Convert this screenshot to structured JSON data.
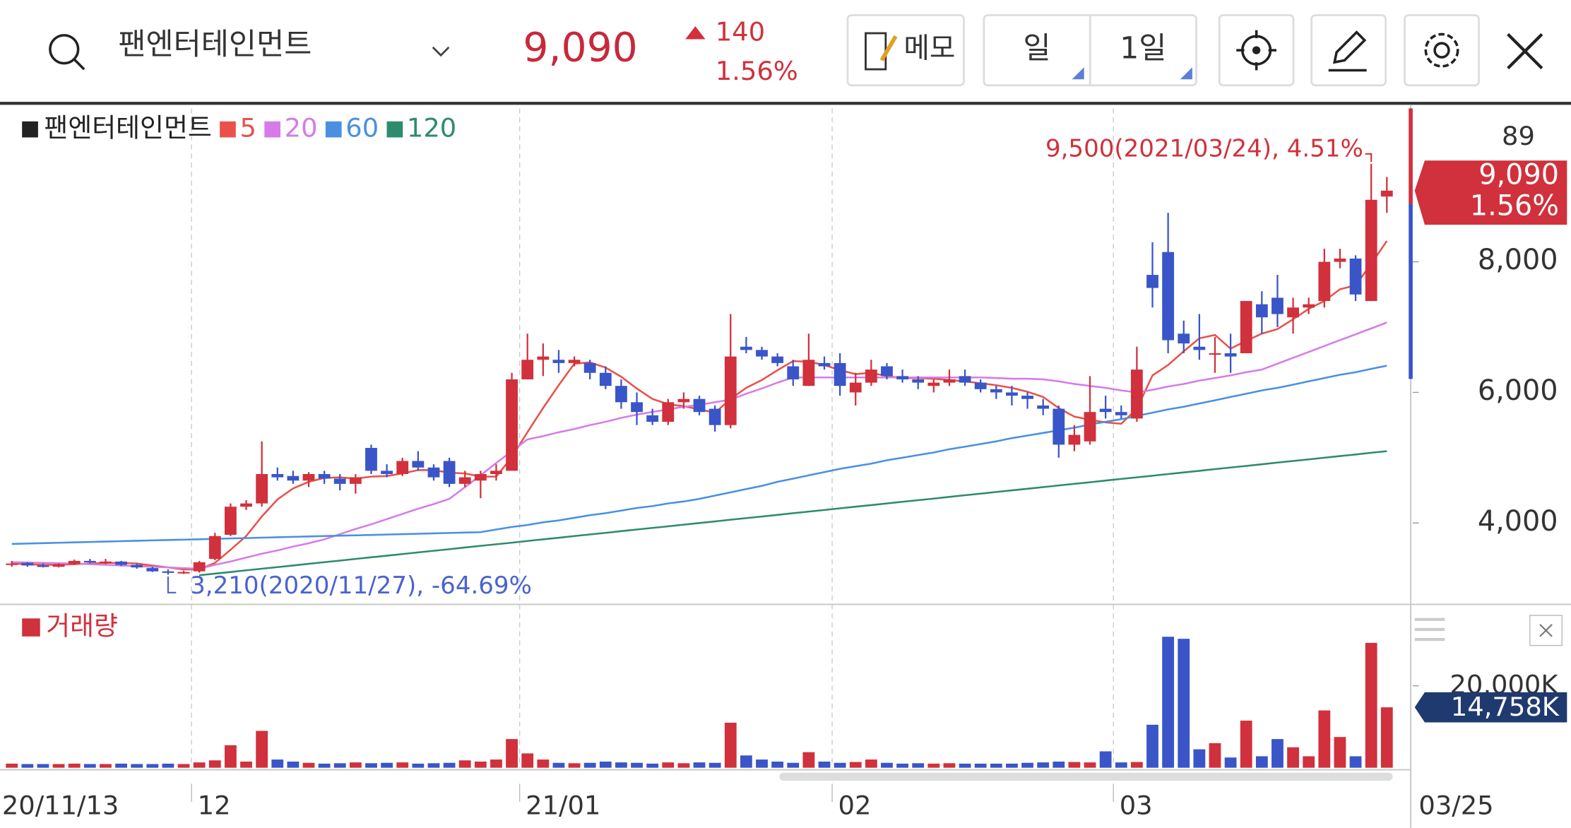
{
  "header": {
    "name": "팬엔터테인먼트",
    "price": "9,090",
    "change": "140",
    "change_pct": "1.56%",
    "memo": "메모",
    "period": "일",
    "interval": "1일"
  },
  "chart_data": [
    {
      "type": "candlestick",
      "top_right_label": "89",
      "categories": [
        "20/11/13",
        null,
        null,
        null,
        null,
        null,
        null,
        null,
        null,
        null,
        null,
        null,
        "12",
        null,
        null,
        null,
        null,
        null,
        null,
        null,
        null,
        null,
        null,
        null,
        null,
        null,
        null,
        null,
        null,
        null,
        null,
        null,
        null,
        "21/01",
        null,
        null,
        null,
        null,
        null,
        null,
        null,
        null,
        null,
        null,
        null,
        null,
        null,
        null,
        null,
        null,
        null,
        null,
        null,
        "02",
        null,
        null,
        null,
        null,
        null,
        null,
        null,
        null,
        null,
        null,
        null,
        null,
        null,
        null,
        null,
        null,
        null,
        "03",
        null,
        null,
        null,
        null,
        null,
        null,
        null,
        null,
        null,
        null,
        null,
        null,
        null,
        null,
        null,
        null,
        "03/25"
      ],
      "series": [
        {
          "name": "팬엔터테인먼트",
          "up_color": "#d0313c",
          "down_color": "#3a55c8",
          "open": [
            3360,
            3390,
            3350,
            3330,
            3370,
            3420,
            3400,
            3410,
            3360,
            3310,
            3260,
            3240,
            3260,
            3450,
            3820,
            4250,
            4300,
            4750,
            4720,
            4650,
            4750,
            4680,
            4600,
            5150,
            4800,
            4750,
            4950,
            4850,
            4950,
            4600,
            4650,
            4750,
            4800,
            6200,
            6500,
            6500,
            6450,
            6450,
            6300,
            6100,
            5850,
            5650,
            5550,
            5850,
            5900,
            5750,
            5500,
            6700,
            6650,
            6550,
            6400,
            6100,
            6450,
            6450,
            6000,
            6150,
            6400,
            6250,
            6200,
            6100,
            6150,
            6250,
            6150,
            6050,
            6000,
            5950,
            5800,
            5750,
            5200,
            5250,
            5750,
            5700,
            5600,
            7800,
            8150,
            6900,
            6700,
            6600,
            6600,
            6600,
            7350,
            7450,
            7150,
            7300,
            7400,
            8000,
            8050,
            7400,
            9000
          ],
          "high": [
            3420,
            3400,
            3380,
            3380,
            3440,
            3450,
            3450,
            3420,
            3380,
            3330,
            3290,
            3270,
            3420,
            3850,
            4300,
            4350,
            5250,
            4850,
            4800,
            4780,
            4800,
            4750,
            4750,
            5200,
            4900,
            5000,
            5100,
            4900,
            5000,
            4800,
            4800,
            4900,
            6300,
            6900,
            6750,
            6650,
            6550,
            6500,
            6400,
            6200,
            6000,
            5750,
            5900,
            6000,
            5950,
            5800,
            7200,
            6850,
            6700,
            6600,
            6500,
            6900,
            6550,
            6600,
            6300,
            6500,
            6450,
            6350,
            6250,
            6200,
            6350,
            6350,
            6200,
            6100,
            6100,
            6000,
            5900,
            5800,
            5500,
            6250,
            5950,
            5800,
            6700,
            8300,
            8750,
            7100,
            7200,
            6850,
            6900,
            7400,
            7550,
            7800,
            7450,
            7450,
            8200,
            8200,
            8100,
            9500,
            9300
          ],
          "low": [
            3330,
            3330,
            3320,
            3320,
            3360,
            3380,
            3370,
            3340,
            3300,
            3250,
            3210,
            3220,
            3240,
            3430,
            3800,
            4200,
            4250,
            4650,
            4600,
            4550,
            4600,
            4500,
            4450,
            4750,
            4700,
            4720,
            4800,
            4650,
            4550,
            4550,
            4380,
            4650,
            4800,
            6200,
            6250,
            6300,
            6400,
            6200,
            6050,
            5750,
            5500,
            5500,
            5500,
            5750,
            5650,
            5400,
            5450,
            6600,
            6500,
            6400,
            6100,
            6100,
            6350,
            5950,
            5800,
            6100,
            6200,
            6150,
            6050,
            6000,
            6100,
            6100,
            6000,
            5900,
            5800,
            5750,
            5650,
            5000,
            5100,
            5200,
            5600,
            5600,
            5550,
            7300,
            6600,
            6600,
            6500,
            6300,
            6300,
            6600,
            6900,
            7000,
            6900,
            7200,
            7300,
            7900,
            7400,
            7400,
            8750
          ],
          "close": [
            3380,
            3350,
            3340,
            3370,
            3420,
            3400,
            3410,
            3360,
            3320,
            3260,
            3240,
            3250,
            3400,
            3800,
            4250,
            4300,
            4750,
            4700,
            4650,
            4750,
            4680,
            4600,
            4700,
            4800,
            4750,
            4950,
            4850,
            4700,
            4600,
            4700,
            4750,
            4800,
            6200,
            6500,
            6550,
            6450,
            6500,
            6300,
            6100,
            5850,
            5700,
            5550,
            5850,
            5900,
            5700,
            5500,
            6550,
            6650,
            6550,
            6450,
            6200,
            6500,
            6400,
            6100,
            6150,
            6350,
            6250,
            6200,
            6150,
            6150,
            6200,
            6150,
            6050,
            6000,
            5950,
            5900,
            5750,
            5200,
            5350,
            5700,
            5700,
            5650,
            6350,
            7600,
            6800,
            6750,
            6650,
            6600,
            6550,
            7400,
            7150,
            7200,
            7300,
            7350,
            8000,
            8050,
            7500,
            8950,
            9090
          ]
        }
      ],
      "moving_averages": [
        {
          "name": "5",
          "color": "#e8524a",
          "values": [
            3380,
            3370,
            3360,
            3360,
            3370,
            3380,
            3390,
            3390,
            3380,
            3350,
            3320,
            3290,
            3290,
            3390,
            3590,
            3800,
            4100,
            4360,
            4530,
            4630,
            4690,
            4700,
            4680,
            4710,
            4720,
            4760,
            4810,
            4810,
            4770,
            4760,
            4710,
            4710,
            5010,
            5390,
            5760,
            6110,
            6440,
            6460,
            6380,
            6240,
            6060,
            5900,
            5820,
            5790,
            5740,
            5690,
            5900,
            6070,
            6190,
            6340,
            6480,
            6470,
            6420,
            6340,
            6280,
            6300,
            6250,
            6220,
            6220,
            6210,
            6190,
            6170,
            6140,
            6110,
            6070,
            6010,
            5930,
            5760,
            5630,
            5580,
            5540,
            5520,
            5750,
            6260,
            6420,
            6630,
            6830,
            6880,
            6670,
            6790,
            6900,
            6970,
            7120,
            7280,
            7400,
            7580,
            7640,
            7970,
            8320
          ]
        },
        {
          "name": "20",
          "color": "#d57ce8",
          "values": [
            3400,
            3395,
            3390,
            3385,
            3380,
            3370,
            3360,
            3350,
            3340,
            3330,
            3320,
            3310,
            3300,
            3360,
            3410,
            3470,
            3530,
            3580,
            3640,
            3690,
            3750,
            3830,
            3910,
            3980,
            4060,
            4140,
            4220,
            4290,
            4370,
            4550,
            4730,
            4920,
            5100,
            5280,
            5330,
            5390,
            5440,
            5500,
            5550,
            5610,
            5660,
            5700,
            5740,
            5780,
            5810,
            5850,
            5890,
            5980,
            6060,
            6150,
            6230,
            6230,
            6230,
            6230,
            6230,
            6230,
            6230,
            6230,
            6230,
            6230,
            6230,
            6230,
            6230,
            6220,
            6210,
            6210,
            6200,
            6170,
            6130,
            6100,
            6070,
            6030,
            6000,
            6040,
            6090,
            6130,
            6180,
            6220,
            6260,
            6310,
            6350,
            6440,
            6530,
            6620,
            6710,
            6800,
            6890,
            6980,
            7070
          ]
        },
        {
          "name": "60",
          "color": "#4a90e2",
          "values": [
            3680,
            3686,
            3692,
            3698,
            3704,
            3710,
            3716,
            3722,
            3728,
            3734,
            3740,
            3746,
            3752,
            3758,
            3764,
            3770,
            3776,
            3782,
            3788,
            3794,
            3800,
            3806,
            3812,
            3818,
            3824,
            3830,
            3836,
            3842,
            3848,
            3854,
            3860,
            3900,
            3940,
            3970,
            4010,
            4040,
            4080,
            4120,
            4150,
            4190,
            4230,
            4260,
            4300,
            4330,
            4370,
            4420,
            4470,
            4520,
            4570,
            4630,
            4680,
            4730,
            4780,
            4830,
            4870,
            4910,
            4960,
            5000,
            5040,
            5080,
            5130,
            5170,
            5210,
            5250,
            5300,
            5340,
            5380,
            5420,
            5460,
            5510,
            5550,
            5590,
            5640,
            5690,
            5740,
            5780,
            5830,
            5880,
            5930,
            5980,
            6030,
            6070,
            6120,
            6170,
            6220,
            6270,
            6310,
            6360,
            6410
          ]
        },
        {
          "name": "120",
          "color": "#2e8b6e",
          "values": [
            null,
            null,
            null,
            null,
            null,
            null,
            null,
            null,
            null,
            null,
            null,
            null,
            3200,
            3225,
            3250,
            3275,
            3300,
            3325,
            3350,
            3375,
            3400,
            3425,
            3450,
            3475,
            3500,
            3525,
            3550,
            3575,
            3600,
            3625,
            3650,
            3675,
            3700,
            3725,
            3750,
            3775,
            3800,
            3825,
            3850,
            3875,
            3900,
            3925,
            3950,
            3975,
            4000,
            4025,
            4050,
            4075,
            4100,
            4125,
            4150,
            4175,
            4200,
            4225,
            4250,
            4275,
            4300,
            4325,
            4350,
            4375,
            4400,
            4425,
            4450,
            4475,
            4500,
            4525,
            4550,
            4575,
            4600,
            4625,
            4650,
            4675,
            4700,
            4725,
            4750,
            4775,
            4800,
            4825,
            4850,
            4875,
            4900,
            4925,
            4950,
            4975,
            5000,
            5025,
            5050,
            5075,
            5100
          ]
        }
      ],
      "ylim": [
        2800,
        10350
      ],
      "yticks": [
        {
          "value": 4000,
          "label": "4,000"
        },
        {
          "value": 6000,
          "label": "6,000"
        },
        {
          "value": 8000,
          "label": "8,000"
        }
      ],
      "annotations": {
        "high": "9,500(2021/03/24), 4.51%",
        "low": "3,210(2020/11/27), -64.69%",
        "last_price": "9,090",
        "last_change": "1.56%"
      }
    },
    {
      "type": "bar",
      "title": "거래량",
      "ylim": [
        0,
        37700
      ],
      "yticks": [
        {
          "value": 20000,
          "label": "20,000K"
        }
      ],
      "values": [
        1000,
        900,
        900,
        900,
        1000,
        900,
        900,
        1000,
        900,
        900,
        1000,
        900,
        1300,
        1800,
        5500,
        1500,
        9000,
        2000,
        1500,
        1200,
        1000,
        1100,
        1300,
        1100,
        1200,
        1300,
        1000,
        1100,
        1200,
        1800,
        1500,
        2000,
        7000,
        3500,
        2000,
        1200,
        1100,
        1200,
        1500,
        1300,
        1200,
        1000,
        1300,
        1100,
        1300,
        1200,
        11000,
        3000,
        2000,
        1500,
        1200,
        3800,
        1500,
        1200,
        1400,
        2000,
        1200,
        1000,
        1100,
        1000,
        1100,
        1000,
        1000,
        1000,
        1000,
        1200,
        1300,
        1500,
        1400,
        1300,
        4000,
        1300,
        1400,
        10500,
        32000,
        31500,
        4500,
        6000,
        2500,
        11500,
        2800,
        7000,
        5000,
        2800,
        14000,
        7500,
        2800,
        30500,
        14758
      ],
      "value_labels": [
        null,
        null,
        null,
        null,
        null,
        null,
        null,
        null,
        null,
        null,
        null,
        null,
        null,
        null,
        null,
        null,
        null,
        null,
        null,
        null,
        null,
        null,
        null,
        null,
        null,
        null,
        null,
        null,
        null,
        null,
        null,
        null,
        null,
        null,
        null,
        null,
        null,
        null,
        null,
        null,
        null,
        null,
        null,
        null,
        null,
        null,
        null,
        null,
        null,
        null,
        null,
        null,
        null,
        null,
        null,
        null,
        null,
        null,
        null,
        null,
        null,
        null,
        null,
        null,
        null,
        null,
        null,
        null,
        null,
        null,
        null,
        null,
        null,
        null,
        null,
        null,
        null,
        null,
        null,
        null,
        null,
        null,
        null,
        null,
        null,
        null,
        null,
        null,
        "14,758K"
      ]
    }
  ]
}
